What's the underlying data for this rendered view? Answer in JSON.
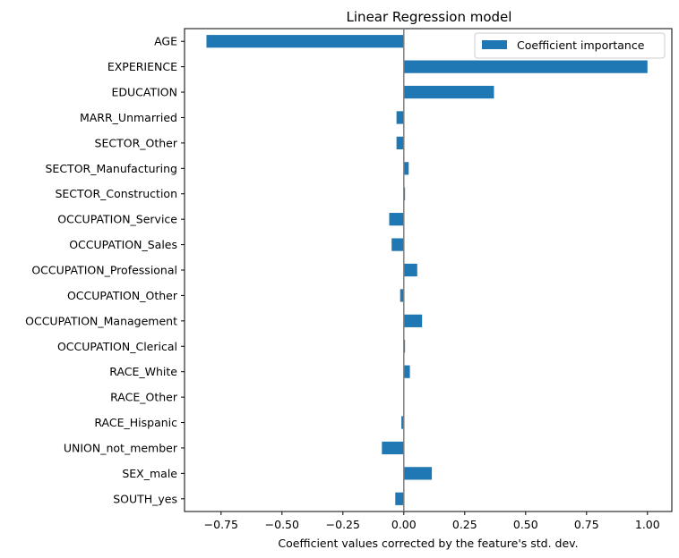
{
  "chart_data": {
    "type": "bar",
    "orientation": "horizontal",
    "title": "Linear Regression model",
    "xlabel": "Coefficient values corrected by the feature's std. dev.",
    "ylabel": "",
    "xlim": [
      -0.9,
      1.1
    ],
    "xticks": [
      -0.75,
      -0.5,
      -0.25,
      0.0,
      0.25,
      0.5,
      0.75,
      1.0
    ],
    "xtick_labels": [
      "−0.75",
      "−0.50",
      "−0.25",
      "0.00",
      "0.25",
      "0.50",
      "0.75",
      "1.00"
    ],
    "categories": [
      "AGE",
      "EXPERIENCE",
      "EDUCATION",
      "MARR_Unmarried",
      "SECTOR_Other",
      "SECTOR_Manufacturing",
      "SECTOR_Construction",
      "OCCUPATION_Service",
      "OCCUPATION_Sales",
      "OCCUPATION_Professional",
      "OCCUPATION_Other",
      "OCCUPATION_Management",
      "OCCUPATION_Clerical",
      "RACE_White",
      "RACE_Other",
      "RACE_Hispanic",
      "UNION_not_member",
      "SEX_male",
      "SOUTH_yes"
    ],
    "series": [
      {
        "name": "Coefficient importance",
        "color": "#1f77b4",
        "values": [
          -0.81,
          1.0,
          0.37,
          -0.03,
          -0.03,
          0.02,
          0.005,
          -0.06,
          -0.05,
          0.055,
          -0.015,
          0.075,
          0.005,
          0.025,
          0.0,
          -0.01,
          -0.09,
          0.115,
          -0.035
        ]
      }
    ],
    "zero_line": true,
    "zero_line_color": "#808080",
    "grid": false,
    "legend_position": "top-right"
  }
}
